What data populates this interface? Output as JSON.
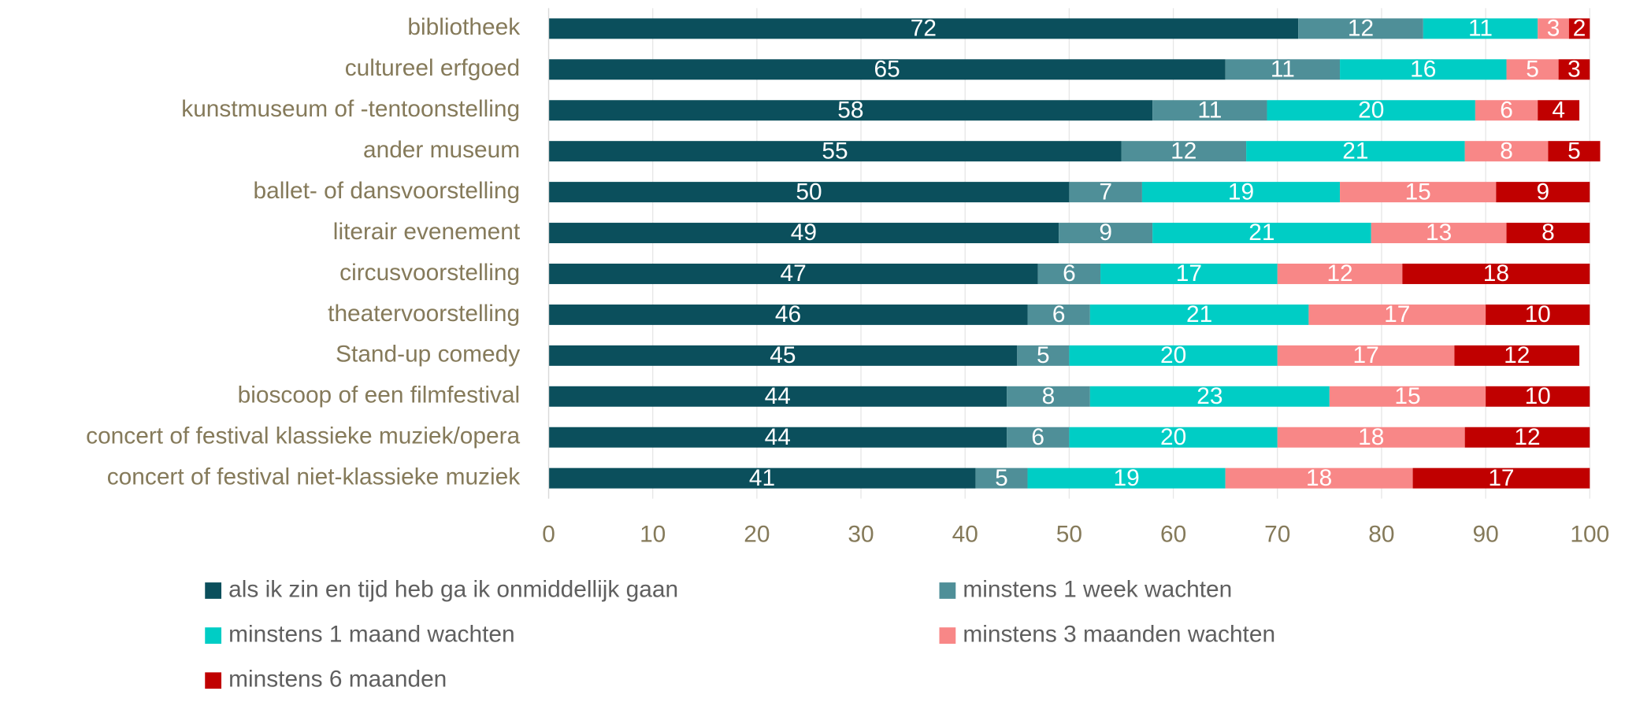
{
  "chart_data": {
    "type": "stacked_bar_horizontal",
    "categories": [
      "bibliotheek",
      "cultureel erfgoed",
      "kunstmuseum of -tentoonstelling",
      "ander museum",
      "ballet- of dansvoorstelling",
      "literair evenement",
      "circusvoorstelling",
      "theatervoorstelling",
      "Stand-up comedy",
      "bioscoop of een filmfestival",
      "concert of festival klassieke muziek/opera",
      "concert of festival niet-klassieke muziek"
    ],
    "series": [
      {
        "name": "als ik zin en tijd heb ga ik onmiddellijk gaan",
        "color": "#0b4f5c",
        "values": [
          72,
          65,
          58,
          55,
          50,
          49,
          47,
          46,
          45,
          44,
          44,
          41
        ]
      },
      {
        "name": "minstens 1 week wachten",
        "color": "#4f8f98",
        "values": [
          12,
          11,
          11,
          12,
          7,
          9,
          6,
          6,
          5,
          8,
          6,
          5
        ]
      },
      {
        "name": "minstens 1 maand wachten",
        "color": "#00cdc5",
        "values": [
          11,
          16,
          20,
          21,
          19,
          21,
          17,
          21,
          20,
          23,
          20,
          19
        ]
      },
      {
        "name": "minstens 3 maanden wachten",
        "color": "#f88787",
        "values": [
          3,
          5,
          6,
          8,
          15,
          13,
          12,
          17,
          17,
          15,
          18,
          18
        ]
      },
      {
        "name": "minstens 6 maanden",
        "color": "#c00000",
        "values": [
          2,
          3,
          4,
          5,
          9,
          8,
          18,
          10,
          12,
          10,
          12,
          17
        ]
      }
    ],
    "xlim": [
      0,
      100
    ],
    "xticks": [
      0,
      10,
      20,
      30,
      40,
      50,
      60,
      70,
      80,
      90,
      100
    ],
    "grid": true
  }
}
